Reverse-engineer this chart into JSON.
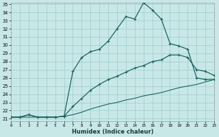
{
  "xlabel": "Humidex (Indice chaleur)",
  "bg_color": "#c8e8e8",
  "grid_color": "#a0c8c8",
  "line_color": "#1a6060",
  "xlim_min": 0,
  "xlim_max": 23,
  "ylim_min": 21,
  "ylim_max": 35,
  "xticks": [
    0,
    1,
    2,
    3,
    4,
    5,
    6,
    7,
    8,
    9,
    10,
    11,
    12,
    13,
    14,
    15,
    16,
    17,
    18,
    19,
    20,
    21,
    22,
    23
  ],
  "yticks": [
    21,
    22,
    23,
    24,
    25,
    26,
    27,
    28,
    29,
    30,
    31,
    32,
    33,
    34,
    35
  ],
  "curve1_x": [
    0,
    1,
    2,
    3,
    4,
    5,
    6,
    7,
    8,
    9,
    10,
    11,
    12,
    13,
    14,
    15,
    16,
    17,
    18,
    19,
    20,
    21,
    22,
    23
  ],
  "curve1_y": [
    21.2,
    21.2,
    21.5,
    21.2,
    21.2,
    21.2,
    21.3,
    26.8,
    28.5,
    29.2,
    29.5,
    30.5,
    32.0,
    33.5,
    33.2,
    35.2,
    34.3,
    33.2,
    30.2,
    29.9,
    29.5,
    26.0,
    25.8,
    25.8
  ],
  "curve2_x": [
    0,
    1,
    2,
    3,
    4,
    5,
    6,
    7,
    8,
    9,
    10,
    11,
    12,
    13,
    14,
    15,
    16,
    17,
    18,
    19,
    20,
    21,
    22,
    23
  ],
  "curve2_y": [
    21.2,
    21.2,
    21.5,
    21.2,
    21.2,
    21.2,
    21.3,
    22.5,
    23.5,
    24.5,
    25.2,
    25.8,
    26.2,
    26.7,
    27.2,
    27.5,
    28.0,
    28.2,
    28.8,
    28.8,
    28.5,
    27.0,
    26.8,
    26.3
  ],
  "curve3_x": [
    0,
    1,
    2,
    3,
    4,
    5,
    6,
    7,
    8,
    9,
    10,
    11,
    12,
    13,
    14,
    15,
    16,
    17,
    18,
    19,
    20,
    21,
    22,
    23
  ],
  "curve3_y": [
    21.2,
    21.2,
    21.2,
    21.2,
    21.2,
    21.2,
    21.3,
    21.5,
    21.8,
    22.2,
    22.5,
    22.8,
    23.0,
    23.3,
    23.5,
    23.8,
    24.0,
    24.2,
    24.5,
    24.8,
    25.0,
    25.2,
    25.5,
    25.8
  ]
}
